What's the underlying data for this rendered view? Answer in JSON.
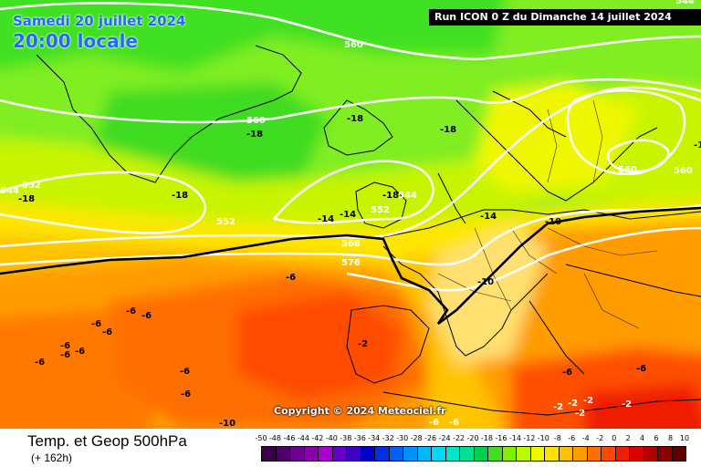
{
  "header": {
    "date": "Samedi 20 juillet 2024",
    "time": "20:00 locale",
    "run": "Run ICON 0 Z du Dimanche 14 juillet 2024",
    "corner_value": "544"
  },
  "footer": {
    "copyright": "Copyright © 2024 Meteociel.fr",
    "product": "Temp. et Geop 500hPa",
    "lead_time": "(+ 162h)"
  },
  "legend": {
    "labels": [
      "-50",
      "-48",
      "-46",
      "-44",
      "-42",
      "-40",
      "-38",
      "-36",
      "-34",
      "-32",
      "-30",
      "-28",
      "-26",
      "-24",
      "-22",
      "-20",
      "-18",
      "-16",
      "-14",
      "-12",
      "-10",
      "-8",
      "-6",
      "-4",
      "-2",
      "0",
      "2",
      "4",
      "6",
      "8",
      "10"
    ],
    "colors": [
      "#3a004a",
      "#4e006a",
      "#6c0090",
      "#8a00b0",
      "#a800d0",
      "#6400c8",
      "#3c00c8",
      "#0000c8",
      "#0030e0",
      "#0060f0",
      "#0090ff",
      "#00b8ff",
      "#00d8f8",
      "#00e8c8",
      "#00e090",
      "#00d050",
      "#40e020",
      "#80f000",
      "#c0f800",
      "#f0f800",
      "#ffe000",
      "#ffc000",
      "#ff9c00",
      "#ff7000",
      "#ff4800",
      "#f01c00",
      "#d80000",
      "#b00000",
      "#880000",
      "#600000"
    ]
  },
  "map_labels": {
    "geopotential": [
      "560",
      "560",
      "560",
      "552",
      "552",
      "552",
      "544",
      "544",
      "560",
      "568",
      "576"
    ],
    "temperature": [
      "-18",
      "-18",
      "-18",
      "-18",
      "-18",
      "-18",
      "-18",
      "-14",
      "-14",
      "-10",
      "-10",
      "-6",
      "-6",
      "-6",
      "-6",
      "-6",
      "-6",
      "-6",
      "-6",
      "-6",
      "-6",
      "-6",
      "-6",
      "-6",
      "-2",
      "-2",
      "-2",
      "-2",
      "-2",
      "-2",
      "-10",
      "-14",
      "-6",
      "-6"
    ]
  }
}
